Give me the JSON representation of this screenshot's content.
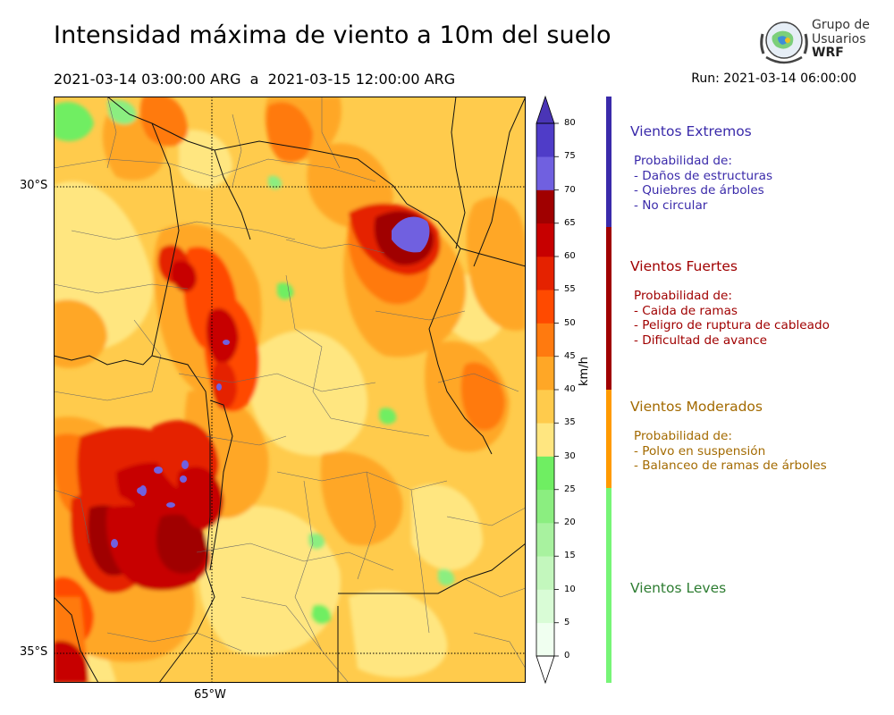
{
  "header": {
    "title": "Intensidad máxima de viento a 10m del suelo",
    "period": "2021-03-14 03:00:00 ARG  a  2021-03-15 12:00:00 ARG",
    "run": "Run: 2021-03-14 06:00:00"
  },
  "logo": {
    "line1": "Grupo de",
    "line2": "Usuarios",
    "line3": "WRF"
  },
  "map": {
    "lat_labels": [
      "30°S",
      "35°S"
    ],
    "lon_labels": [
      "65°W"
    ]
  },
  "colorbar": {
    "unit": "km/h",
    "ticks": [
      "0",
      "5",
      "10",
      "15",
      "20",
      "25",
      "30",
      "35",
      "40",
      "45",
      "50",
      "55",
      "60",
      "65",
      "70",
      "75",
      "80"
    ],
    "colors": [
      "#f0fff0",
      "#d9fcd6",
      "#c3f7bd",
      "#a8f29f",
      "#8bee80",
      "#6fee62",
      "#ffe680",
      "#ffcb4c",
      "#ffa726",
      "#ff7a0f",
      "#ff4a00",
      "#e52200",
      "#c70000",
      "#a00000",
      "#7060e0",
      "#4f3cc8",
      "#3a24a8"
    ],
    "cap_top_color": "#4a35b6",
    "cap_bottom_color": "#ffffff"
  },
  "categories": [
    {
      "title": "Vientos Extremos",
      "color": "#3a2aaa",
      "bar_color": "#3a2aaa",
      "lines": [
        "Probabilidad de:",
        "- Daños de estructuras",
        "- Quiebres de árboles",
        "- No circular"
      ]
    },
    {
      "title": "Vientos Fuertes",
      "color": "#a00000",
      "bar_color": "#a00000",
      "lines": [
        "Probabilidad de:",
        "- Caida de ramas",
        "- Peligro de ruptura de cableado",
        "- Dificultad de avance"
      ]
    },
    {
      "title": "Vientos Moderados",
      "color": "#a36a00",
      "bar_color": "#ff9a00",
      "lines": [
        "Probabilidad de:",
        "- Polvo en suspensión",
        "- Balanceo de ramas de árboles"
      ]
    },
    {
      "title": "Vientos Leves",
      "color": "#2e7d32",
      "bar_color": "#77f577",
      "lines": []
    }
  ]
}
